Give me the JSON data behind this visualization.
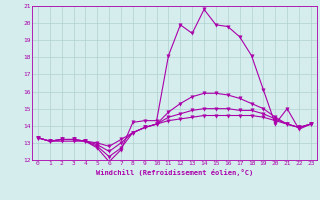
{
  "title": "",
  "xlabel": "Windchill (Refroidissement éolien,°C)",
  "ylabel": "",
  "x_hours": [
    0,
    1,
    2,
    3,
    4,
    5,
    6,
    7,
    8,
    9,
    10,
    11,
    12,
    13,
    14,
    15,
    16,
    17,
    18,
    19,
    20,
    21,
    22,
    23
  ],
  "line1": [
    13.3,
    13.1,
    13.1,
    13.1,
    13.1,
    12.7,
    11.9,
    12.6,
    14.2,
    14.3,
    14.3,
    18.1,
    19.9,
    19.4,
    20.8,
    19.9,
    19.8,
    19.2,
    18.1,
    16.1,
    14.1,
    15.0,
    13.8,
    14.1
  ],
  "line2": [
    13.3,
    13.1,
    13.2,
    13.2,
    13.1,
    12.8,
    12.2,
    12.7,
    13.6,
    13.9,
    14.1,
    14.8,
    15.3,
    15.7,
    15.9,
    15.9,
    15.8,
    15.6,
    15.3,
    15.0,
    14.5,
    14.1,
    13.9,
    14.1
  ],
  "line3": [
    13.3,
    13.1,
    13.2,
    13.2,
    13.1,
    12.9,
    12.5,
    13.0,
    13.6,
    13.9,
    14.1,
    14.5,
    14.7,
    14.9,
    15.0,
    15.0,
    15.0,
    14.9,
    14.9,
    14.7,
    14.4,
    14.1,
    13.9,
    14.1
  ],
  "line4": [
    13.3,
    13.1,
    13.2,
    13.2,
    13.1,
    13.0,
    12.8,
    13.2,
    13.6,
    13.9,
    14.1,
    14.3,
    14.4,
    14.5,
    14.6,
    14.6,
    14.6,
    14.6,
    14.6,
    14.5,
    14.3,
    14.1,
    13.9,
    14.1
  ],
  "line_color": "#aa00aa",
  "bg_color": "#d5eeed",
  "grid_color": "#b0d0d0",
  "ylim": [
    12,
    21
  ],
  "yticks": [
    12,
    13,
    14,
    15,
    16,
    17,
    18,
    19,
    20,
    21
  ],
  "xticks": [
    0,
    1,
    2,
    3,
    4,
    5,
    6,
    7,
    8,
    9,
    10,
    11,
    12,
    13,
    14,
    15,
    16,
    17,
    18,
    19,
    20,
    21,
    22,
    23
  ]
}
